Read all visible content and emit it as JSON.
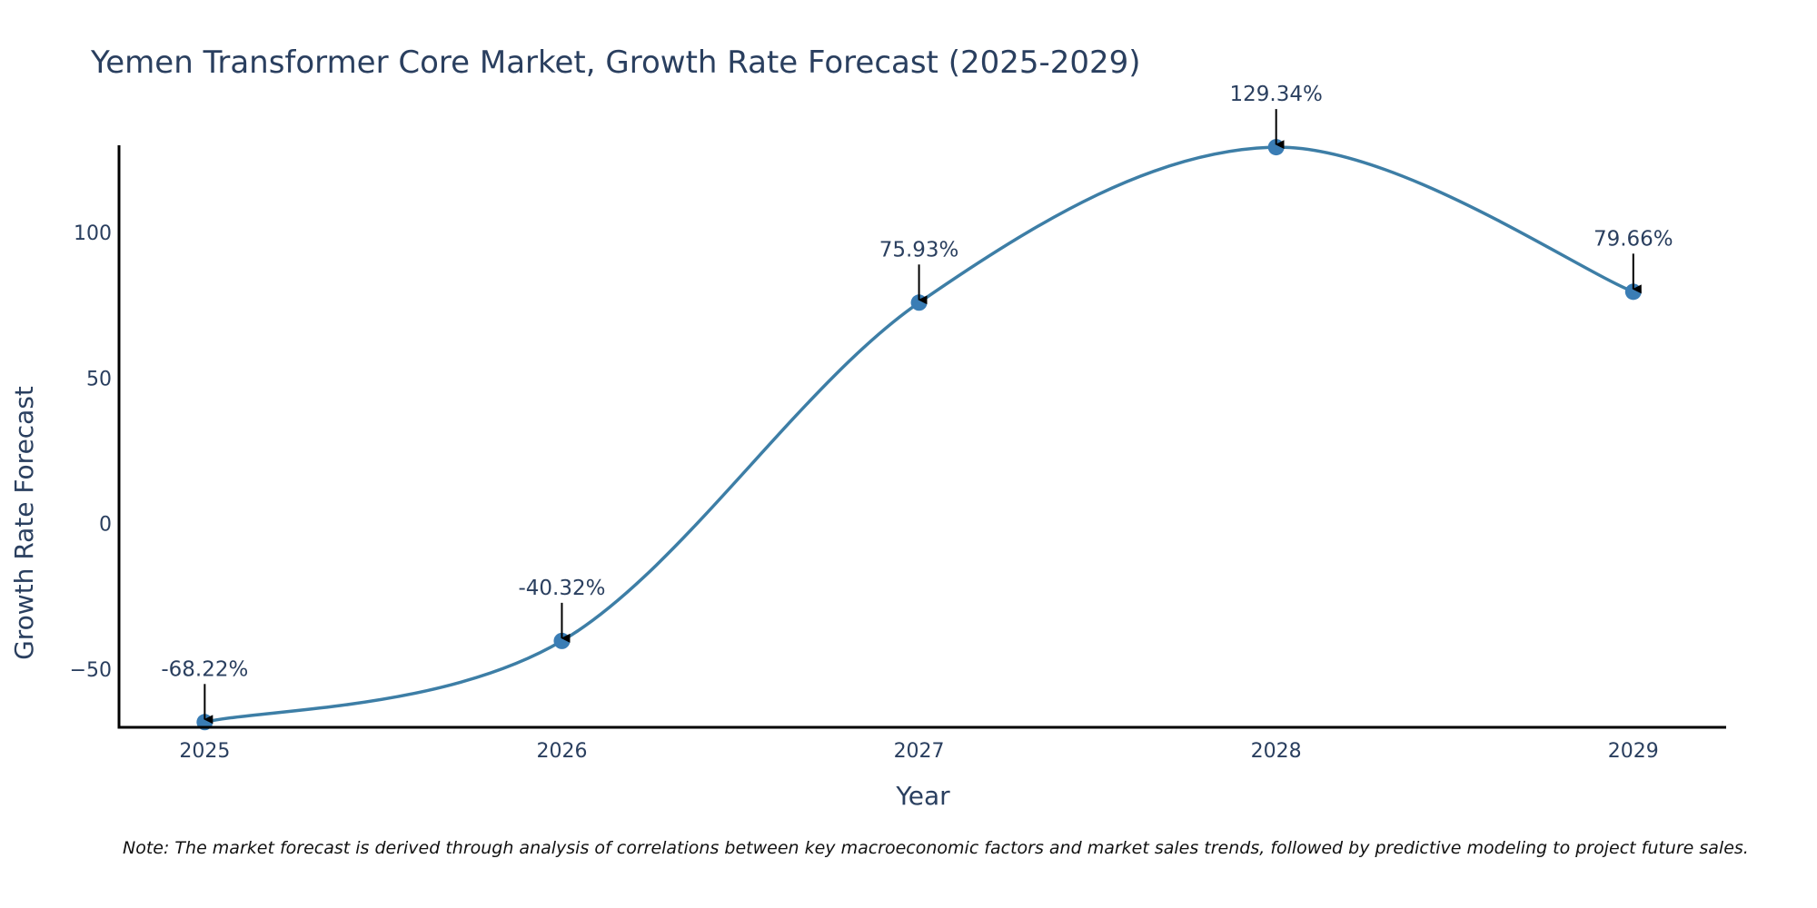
{
  "chart_data": {
    "type": "line",
    "title": "Yemen Transformer Core Market, Growth Rate Forecast (2025-2029)",
    "xlabel": "Year",
    "ylabel": "Growth Rate Forecast",
    "x": [
      2025,
      2026,
      2027,
      2028,
      2029
    ],
    "categories": [
      "2025",
      "2026",
      "2027",
      "2028",
      "2029"
    ],
    "series": [
      {
        "name": "Growth Rate Forecast",
        "values": [
          -68.22,
          -40.32,
          75.93,
          129.34,
          79.66
        ],
        "color": "#3d7ea6",
        "marker_color": "#3a7db5",
        "line_shape": "spline"
      }
    ],
    "annotations": [
      "-68.22%",
      "-40.32%",
      "75.93%",
      "129.34%",
      "79.66%"
    ],
    "yticks": [
      -50,
      0,
      50,
      100
    ],
    "ytick_labels": [
      "−50",
      "0",
      "50",
      "100"
    ],
    "ylim": [
      -70,
      130
    ],
    "xlim": [
      2024.76,
      2029.26
    ],
    "grid": false,
    "legend": "none",
    "note": "Note: The market forecast is derived through analysis of correlations between key macroeconomic factors and market sales trends, followed by predictive modeling to project future sales."
  }
}
